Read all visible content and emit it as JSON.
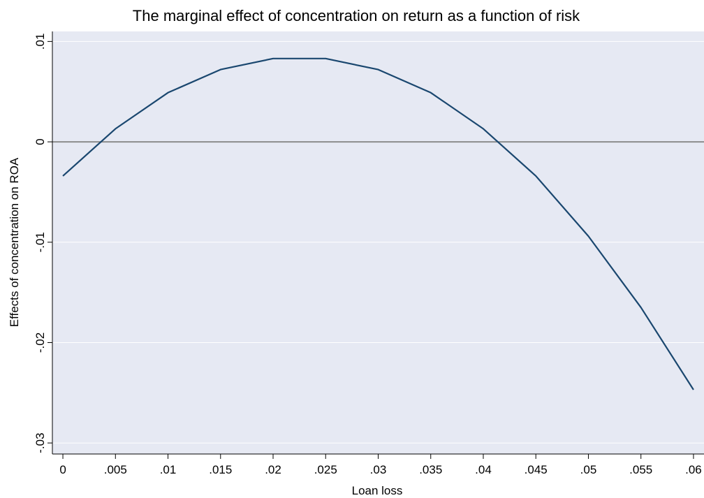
{
  "chart_data": {
    "type": "line",
    "title": "The marginal effect of concentration on return as a function of risk",
    "x_label": "Loan loss",
    "y_label": "Effects of concentration on ROA",
    "x": [
      0,
      0.005,
      0.01,
      0.015,
      0.02,
      0.025,
      0.03,
      0.035,
      0.04,
      0.045,
      0.05,
      0.055,
      0.06
    ],
    "series": [
      {
        "name": "Effects of concentration on ROA",
        "color": "#1a476f",
        "values": [
          -0.0034,
          0.0013,
          0.0049,
          0.0072,
          0.0083,
          0.0083,
          0.0072,
          0.0049,
          0.0013,
          -0.0034,
          -0.0094,
          -0.0165,
          -0.0247
        ]
      }
    ],
    "xlim": [
      -0.001,
      0.061
    ],
    "ylim": [
      -0.0311,
      0.011
    ],
    "xticks": [
      0,
      {
        "value": 0.005,
        "label": ".005"
      },
      {
        "value": 0.01,
        "label": ".01"
      },
      {
        "value": 0.015,
        "label": ".015"
      },
      {
        "value": 0.02,
        "label": ".02"
      },
      {
        "value": 0.025,
        "label": ".025"
      },
      {
        "value": 0.03,
        "label": ".03"
      },
      {
        "value": 0.035,
        "label": ".035"
      },
      {
        "value": 0.04,
        "label": ".04"
      },
      {
        "value": 0.045,
        "label": ".045"
      },
      {
        "value": 0.05,
        "label": ".05"
      },
      {
        "value": 0.055,
        "label": ".055"
      },
      {
        "value": 0.06,
        "label": ".06"
      }
    ],
    "yticks": [
      {
        "value": 0.01,
        "label": ".01"
      },
      0,
      {
        "value": -0.01,
        "label": "-.01"
      },
      {
        "value": -0.02,
        "label": "-.02"
      },
      {
        "value": -0.03,
        "label": "-.03"
      }
    ],
    "grid": true,
    "reference_line": 0,
    "plot_background": "#e6e9f3"
  }
}
